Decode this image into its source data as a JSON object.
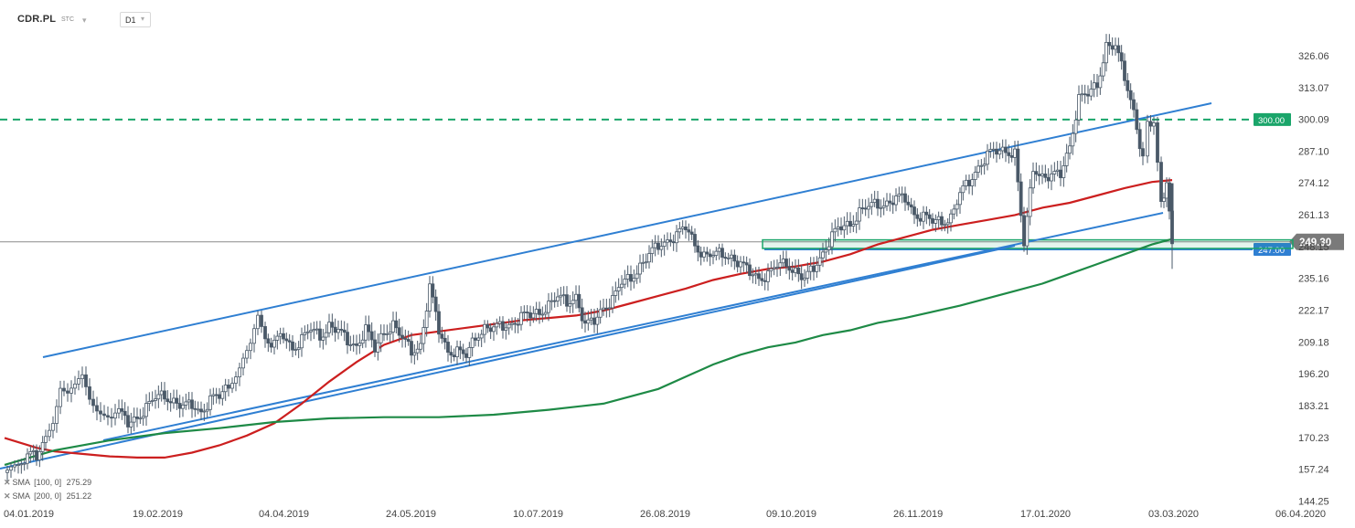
{
  "toolbar": {
    "symbol": "CDR.PL",
    "market": "STC",
    "timeframe": "D1"
  },
  "indicators": [
    {
      "label": "SMA",
      "params": "[100,  0]",
      "value": "275.29",
      "color": "#cc1f1f"
    },
    {
      "label": "SMA",
      "params": "[200,  0]",
      "value": "251.22",
      "color": "#1e8a46"
    }
  ],
  "chart_data": {
    "type": "candlestick",
    "symbol": "CDR.PL",
    "timeframe": "D1",
    "y_axis": {
      "ticks": [
        326.06,
        313.07,
        300.09,
        287.1,
        274.12,
        261.13,
        248.15,
        235.16,
        222.17,
        209.18,
        196.2,
        183.21,
        170.23,
        157.24,
        144.25
      ],
      "tick_labels": [
        "326.06",
        "313.07",
        "300.09",
        "287.10",
        "274.12",
        "261.13",
        "248.15",
        "235.16",
        "222.17",
        "209.18",
        "196.20",
        "183.21",
        "170.23",
        "157.24",
        "144.25"
      ],
      "range": [
        144.25,
        337
      ]
    },
    "x_axis": {
      "labels": [
        "04.01.2019",
        "19.02.2019",
        "04.04.2019",
        "24.05.2019",
        "10.07.2019",
        "26.08.2019",
        "09.10.2019",
        "26.11.2019",
        "17.01.2020",
        "03.03.2020",
        "06.04.2020"
      ]
    },
    "last_price": {
      "value": 249.3,
      "label": "249.30",
      "color": "#7a7a7a"
    },
    "horizontal_levels": [
      {
        "value": 300.0,
        "label": "300.00",
        "style": "dashed",
        "color": "#1aa56a"
      },
      {
        "value": 247.0,
        "label": "247.00",
        "style": "solid",
        "color": "#2f7fd2"
      }
    ],
    "zone": {
      "from": 247.0,
      "to": 250.5,
      "color": "#1aa56a"
    },
    "trendlines": [
      {
        "from": [
          "04.01.2019",
          202.5
        ],
        "to": [
          "03.03.2020",
          304.5
        ],
        "color": "#2f7fd2"
      },
      {
        "from": [
          "04.01.2019",
          170.0
        ],
        "to": [
          "03.03.2020",
          261.0
        ],
        "color": "#2f7fd2"
      }
    ],
    "series": [
      {
        "name": "SMA [100, 0]",
        "color": "#cc1f1f",
        "values": [
          [
            5,
            170.0
          ],
          [
            40,
            166.0
          ],
          [
            60,
            164.5
          ],
          [
            90,
            163.5
          ],
          [
            120,
            162.5
          ],
          [
            150,
            162.0
          ],
          [
            180,
            162.0
          ],
          [
            210,
            164.0
          ],
          [
            240,
            167.0
          ],
          [
            270,
            171.0
          ],
          [
            300,
            176.0
          ],
          [
            330,
            184.0
          ],
          [
            360,
            193.0
          ],
          [
            390,
            201.0
          ],
          [
            420,
            208.0
          ],
          [
            450,
            212.0
          ],
          [
            480,
            213.5
          ],
          [
            510,
            215.0
          ],
          [
            540,
            216.5
          ],
          [
            570,
            218.0
          ],
          [
            600,
            219.0
          ],
          [
            630,
            220.0
          ],
          [
            660,
            222.0
          ],
          [
            690,
            225.0
          ],
          [
            720,
            228.0
          ],
          [
            750,
            231.0
          ],
          [
            780,
            234.5
          ],
          [
            810,
            237.0
          ],
          [
            840,
            239.0
          ],
          [
            870,
            240.0
          ],
          [
            900,
            242.0
          ],
          [
            930,
            245.0
          ],
          [
            960,
            249.0
          ],
          [
            990,
            252.0
          ],
          [
            1020,
            255.0
          ],
          [
            1050,
            257.0
          ],
          [
            1080,
            259.0
          ],
          [
            1110,
            261.0
          ],
          [
            1140,
            264.0
          ],
          [
            1170,
            266.0
          ],
          [
            1200,
            269.0
          ],
          [
            1230,
            272.0
          ],
          [
            1260,
            274.5
          ],
          [
            1282,
            275.3
          ]
        ]
      },
      {
        "name": "SMA [200, 0]",
        "color": "#1e8a46",
        "values": [
          [
            5,
            159.0
          ],
          [
            60,
            165.0
          ],
          [
            120,
            169.0
          ],
          [
            180,
            172.0
          ],
          [
            240,
            174.0
          ],
          [
            300,
            176.5
          ],
          [
            360,
            178.0
          ],
          [
            420,
            178.5
          ],
          [
            480,
            178.5
          ],
          [
            540,
            179.5
          ],
          [
            600,
            181.5
          ],
          [
            660,
            184.0
          ],
          [
            720,
            190.0
          ],
          [
            750,
            195.0
          ],
          [
            780,
            200.0
          ],
          [
            810,
            204.0
          ],
          [
            840,
            207.0
          ],
          [
            870,
            209.0
          ],
          [
            900,
            212.0
          ],
          [
            930,
            214.0
          ],
          [
            960,
            217.0
          ],
          [
            990,
            219.0
          ],
          [
            1020,
            221.5
          ],
          [
            1050,
            224.0
          ],
          [
            1080,
            227.0
          ],
          [
            1110,
            230.0
          ],
          [
            1140,
            233.0
          ],
          [
            1170,
            237.0
          ],
          [
            1200,
            241.0
          ],
          [
            1230,
            245.0
          ],
          [
            1260,
            249.0
          ],
          [
            1282,
            251.2
          ]
        ]
      },
      {
        "name": "CDR.PL",
        "color": "#4a5968",
        "close": [
          [
            8,
            155
          ],
          [
            20,
            158
          ],
          [
            30,
            162
          ],
          [
            40,
            163
          ],
          [
            50,
            171
          ],
          [
            58,
            178
          ],
          [
            66,
            192
          ],
          [
            74,
            188
          ],
          [
            82,
            190
          ],
          [
            90,
            194
          ],
          [
            98,
            186
          ],
          [
            106,
            183
          ],
          [
            114,
            181
          ],
          [
            122,
            178
          ],
          [
            130,
            180
          ],
          [
            140,
            176
          ],
          [
            150,
            179
          ],
          [
            160,
            182
          ],
          [
            170,
            186
          ],
          [
            180,
            188
          ],
          [
            190,
            185
          ],
          [
            200,
            182
          ],
          [
            210,
            184
          ],
          [
            220,
            181
          ],
          [
            230,
            185
          ],
          [
            240,
            187
          ],
          [
            250,
            192
          ],
          [
            258,
            197
          ],
          [
            266,
            203
          ],
          [
            274,
            207
          ],
          [
            282,
            218
          ],
          [
            290,
            210
          ],
          [
            300,
            208
          ],
          [
            310,
            212
          ],
          [
            320,
            207
          ],
          [
            330,
            210
          ],
          [
            340,
            214
          ],
          [
            350,
            212
          ],
          [
            360,
            216
          ],
          [
            370,
            213
          ],
          [
            380,
            210
          ],
          [
            390,
            208
          ],
          [
            400,
            214
          ],
          [
            410,
            206
          ],
          [
            420,
            214
          ],
          [
            430,
            216
          ],
          [
            440,
            210
          ],
          [
            450,
            206
          ],
          [
            460,
            208
          ],
          [
            470,
            231
          ],
          [
            480,
            214
          ],
          [
            490,
            206
          ],
          [
            500,
            205
          ],
          [
            510,
            203
          ],
          [
            520,
            212
          ],
          [
            530,
            215
          ],
          [
            540,
            214
          ],
          [
            550,
            216
          ],
          [
            560,
            217
          ],
          [
            570,
            219
          ],
          [
            580,
            220
          ],
          [
            590,
            222
          ],
          [
            600,
            224
          ],
          [
            610,
            227
          ],
          [
            620,
            226
          ],
          [
            630,
            228
          ],
          [
            640,
            215
          ],
          [
            650,
            218
          ],
          [
            660,
            224
          ],
          [
            670,
            226
          ],
          [
            680,
            233
          ],
          [
            690,
            236
          ],
          [
            700,
            240
          ],
          [
            710,
            244
          ],
          [
            720,
            249
          ],
          [
            730,
            251
          ],
          [
            740,
            252
          ],
          [
            750,
            256
          ],
          [
            760,
            250
          ],
          [
            770,
            244
          ],
          [
            780,
            244
          ],
          [
            790,
            246
          ],
          [
            800,
            244
          ],
          [
            810,
            240
          ],
          [
            820,
            238
          ],
          [
            830,
            236
          ],
          [
            840,
            236
          ],
          [
            850,
            240
          ],
          [
            860,
            242
          ],
          [
            870,
            238
          ],
          [
            880,
            234
          ],
          [
            890,
            240
          ],
          [
            900,
            246
          ],
          [
            910,
            252
          ],
          [
            920,
            256
          ],
          [
            930,
            258
          ],
          [
            940,
            262
          ],
          [
            950,
            264
          ],
          [
            960,
            266
          ],
          [
            970,
            266
          ],
          [
            980,
            267
          ],
          [
            990,
            268
          ],
          [
            1000,
            262
          ],
          [
            1010,
            260
          ],
          [
            1020,
            258
          ],
          [
            1030,
            259
          ],
          [
            1040,
            260
          ],
          [
            1050,
            269
          ],
          [
            1060,
            275
          ],
          [
            1070,
            281
          ],
          [
            1080,
            285
          ],
          [
            1090,
            287
          ],
          [
            1100,
            288
          ],
          [
            1110,
            286
          ],
          [
            1120,
            248
          ],
          [
            1130,
            281
          ],
          [
            1140,
            277
          ],
          [
            1150,
            276
          ],
          [
            1160,
            278
          ],
          [
            1170,
            290
          ],
          [
            1180,
            308
          ],
          [
            1190,
            310
          ],
          [
            1200,
            315
          ],
          [
            1210,
            330
          ],
          [
            1220,
            329
          ],
          [
            1230,
            318
          ],
          [
            1240,
            304
          ],
          [
            1250,
            283
          ],
          [
            1255,
            300
          ],
          [
            1262,
            298
          ],
          [
            1270,
            268
          ],
          [
            1276,
            272
          ],
          [
            1282,
            249.3
          ]
        ]
      }
    ]
  }
}
